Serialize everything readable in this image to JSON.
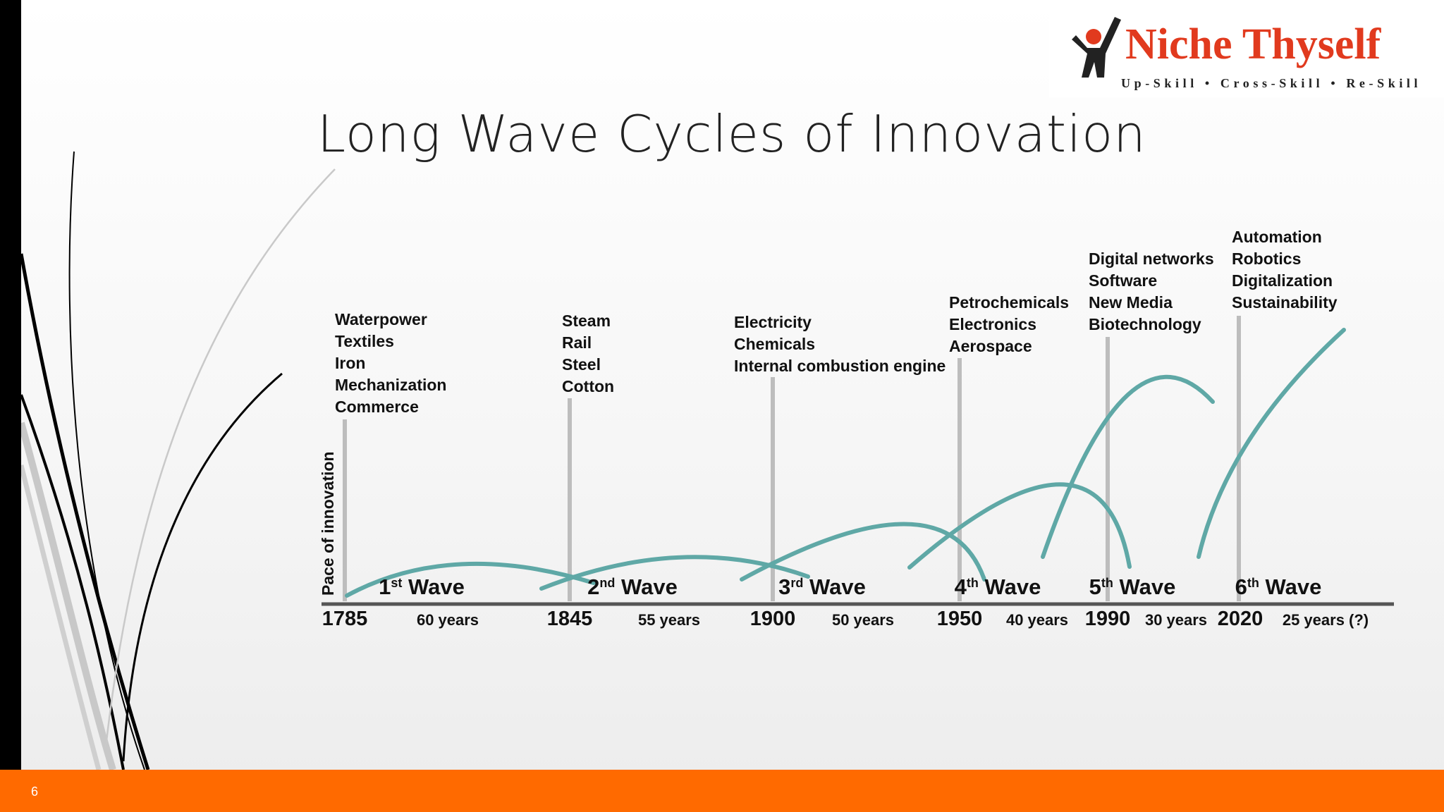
{
  "slide": {
    "title": "Long Wave Cycles of Innovation",
    "number": "6"
  },
  "logo": {
    "name": "Niche Thyself",
    "tagline": "Up-Skill • Cross-Skill • Re-Skill"
  },
  "colors": {
    "accent": "#FF6A00",
    "wave": "#5FA8A6",
    "marker": "#BDBDBD",
    "logo_red": "#E13A1E"
  },
  "diagram": {
    "y_axis_label": "Pace of innovation",
    "years": [
      "1785",
      "1845",
      "1900",
      "1950",
      "1990",
      "2020"
    ],
    "durations": [
      "60 years",
      "55 years",
      "50 years",
      "40 years",
      "30 years",
      "25 years (?)"
    ],
    "waves": [
      {
        "ordinal": "1",
        "suffix": "st",
        "word": "Wave"
      },
      {
        "ordinal": "2",
        "suffix": "nd",
        "word": "Wave"
      },
      {
        "ordinal": "3",
        "suffix": "rd",
        "word": "Wave"
      },
      {
        "ordinal": "4",
        "suffix": "th",
        "word": "Wave"
      },
      {
        "ordinal": "5",
        "suffix": "th",
        "word": "Wave"
      },
      {
        "ordinal": "6",
        "suffix": "th",
        "word": "Wave"
      }
    ],
    "technologies": [
      [
        "Waterpower",
        "Textiles",
        "Iron",
        "Mechanization",
        "Commerce"
      ],
      [
        "Steam",
        "Rail",
        "Steel",
        "Cotton"
      ],
      [
        "Electricity",
        "Chemicals",
        "Internal combustion engine"
      ],
      [
        "Petrochemicals",
        "Electronics",
        "Aerospace"
      ],
      [
        "Digital networks",
        "Software",
        "New Media",
        "Biotechnology"
      ],
      [
        "Automation",
        "Robotics",
        "Digitalization",
        "Sustainability"
      ]
    ]
  }
}
